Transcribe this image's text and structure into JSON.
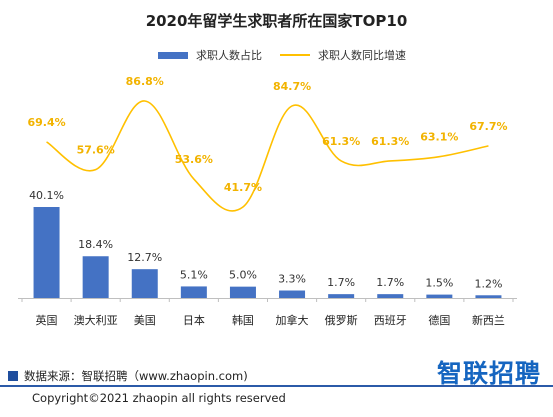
{
  "chart_data": {
    "type": "bar",
    "title": "2020年留学生求职者所在国家TOP10",
    "categories": [
      "英国",
      "澳大利亚",
      "美国",
      "日本",
      "韩国",
      "加拿大",
      "俄罗斯",
      "西班牙",
      "德国",
      "新西兰"
    ],
    "series": [
      {
        "name": "求职人数占比",
        "type": "bar",
        "values": [
          40.1,
          18.4,
          12.7,
          5.1,
          5.0,
          3.3,
          1.7,
          1.7,
          1.5,
          1.2
        ],
        "labels": [
          "40.1%",
          "18.4%",
          "12.7%",
          "5.1%",
          "5.0%",
          "3.3%",
          "1.7%",
          "1.7%",
          "1.5%",
          "1.2%"
        ],
        "color": "#4472C4"
      },
      {
        "name": "求职人数同比增速",
        "type": "line",
        "values": [
          69.4,
          57.6,
          86.8,
          53.6,
          41.7,
          84.7,
          61.3,
          61.3,
          63.1,
          67.7
        ],
        "labels": [
          "69.4%",
          "57.6%",
          "86.8%",
          "53.6%",
          "41.7%",
          "84.7%",
          "61.3%",
          "61.3%",
          "63.1%",
          "67.7%"
        ],
        "color": "#FFC000",
        "smooth": true
      }
    ],
    "legend_position": "top-center",
    "grid": false
  },
  "footer": {
    "source": "数据来源：智联招聘（www.zhaopin.com)",
    "logo": "智联招聘",
    "copyright": "Copyright©2021 zhaopin all rights reserved"
  },
  "colors": {
    "bar": "#4472C4",
    "line": "#FFC000",
    "line_label": "#F2B300",
    "brand": "#1565C0"
  }
}
